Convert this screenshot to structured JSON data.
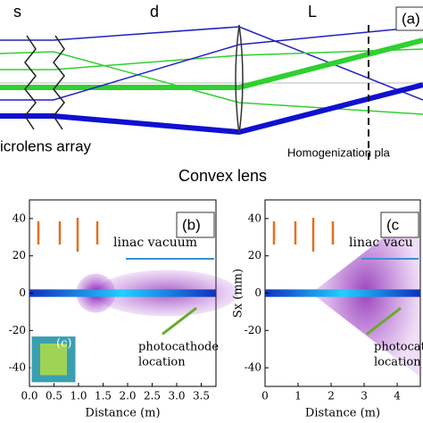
{
  "diagram": {
    "labels": {
      "s": "s",
      "d": "d",
      "L": "L",
      "panel": "(a)",
      "array": "icrolens array",
      "lens": "Convex lens",
      "plane": "Homogenization pla"
    }
  },
  "panels": [
    {
      "label": "(b)",
      "xlabel": "Distance (m)",
      "xlim": [
        0,
        3.8
      ],
      "ylim": [
        -50,
        50
      ],
      "xticks": [
        {
          "value": 0,
          "label": "0.0"
        },
        {
          "value": 0.5,
          "label": "0.5"
        },
        {
          "value": 1,
          "label": "1.0"
        },
        {
          "value": 1.5,
          "label": "1.5"
        },
        {
          "value": 2,
          "label": "2.0"
        },
        {
          "value": 2.5,
          "label": "2.5"
        },
        {
          "value": 3,
          "label": "3.0"
        },
        {
          "value": 3.5,
          "label": "3.5"
        }
      ],
      "yticks": [
        40,
        20,
        0,
        -20,
        -40
      ],
      "vacuum": "linac vacuum",
      "cathode": [
        "photocathode",
        "location"
      ],
      "inset": "(c)"
    },
    {
      "label": "(c",
      "ylabel": "Sx (mm)",
      "xlabel": "Distance (m)",
      "xlim": [
        0,
        4.7
      ],
      "ylim": [
        -50,
        50
      ],
      "xticks": [
        0,
        1,
        2,
        3,
        4
      ],
      "yticks": [
        40,
        20,
        0,
        -20,
        -40
      ],
      "vacuum": "linac vacu",
      "cathode": [
        "photocathode",
        "location"
      ]
    }
  ]
}
